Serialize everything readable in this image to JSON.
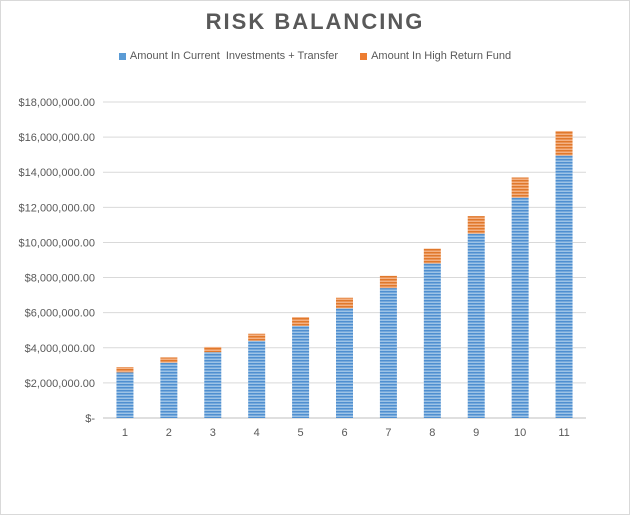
{
  "chart_data": {
    "type": "bar",
    "stacked": true,
    "title": "RISK BALANCING",
    "categories": [
      "1",
      "2",
      "3",
      "4",
      "5",
      "6",
      "7",
      "8",
      "9",
      "10",
      "11"
    ],
    "series": [
      {
        "name": "Amount In Current  Investments + Transfer",
        "color": "#5b9bd5",
        "values": [
          2600000,
          3150000,
          3750000,
          4400000,
          5250000,
          6250000,
          7400000,
          8800000,
          10500000,
          12550000,
          14950000
        ]
      },
      {
        "name": "Amount In High Return Fund",
        "color": "#ed7d31",
        "values": [
          300000,
          300000,
          300000,
          400000,
          500000,
          600000,
          700000,
          850000,
          1000000,
          1150000,
          1400000
        ]
      }
    ],
    "ylim": [
      0,
      18000000
    ],
    "yticks": [
      {
        "value": 0,
        "label": "$-"
      },
      {
        "value": 2000000,
        "label": "$2,000,000.00"
      },
      {
        "value": 4000000,
        "label": "$4,000,000.00"
      },
      {
        "value": 6000000,
        "label": "$6,000,000.00"
      },
      {
        "value": 8000000,
        "label": "$8,000,000.00"
      },
      {
        "value": 10000000,
        "label": "$10,000,000.00"
      },
      {
        "value": 12000000,
        "label": "$12,000,000.00"
      },
      {
        "value": 14000000,
        "label": "$14,000,000.00"
      },
      {
        "value": 16000000,
        "label": "$16,000,000.00"
      },
      {
        "value": 18000000,
        "label": "$18,000,000.00"
      }
    ],
    "grid": true,
    "legend_position": "top"
  }
}
